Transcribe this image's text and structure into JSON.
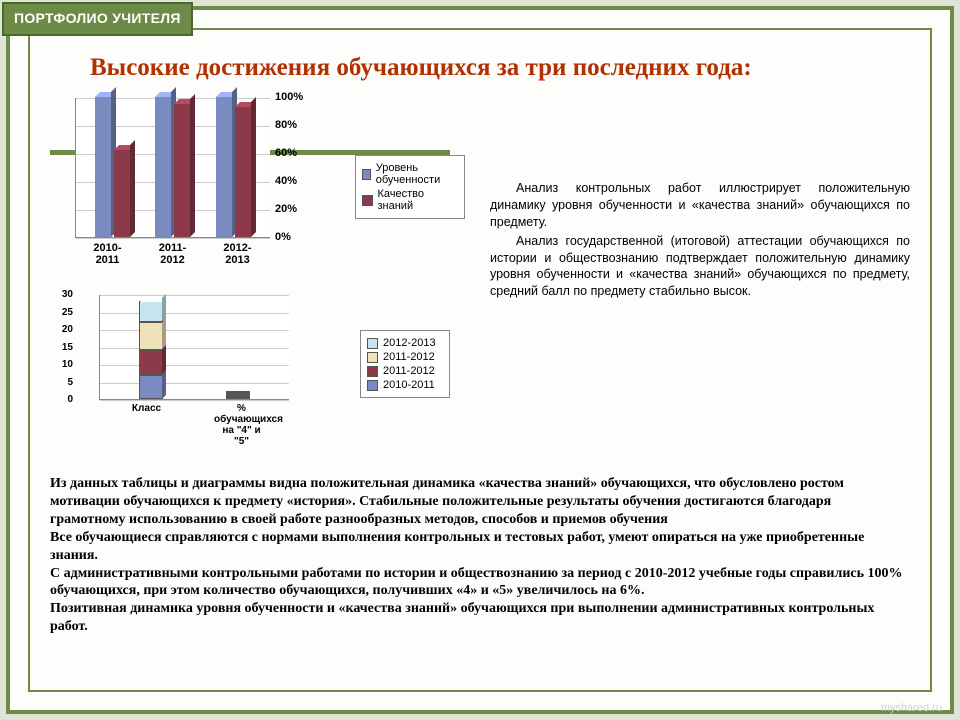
{
  "badge": {
    "label": "ПОРТФОЛИО УЧИТЕЛЯ"
  },
  "title": "Высокие достижения обучающихся за три последних года:",
  "chart1": {
    "type": "bar",
    "categories": [
      "2010-\n2011",
      "2011-\n2012",
      "2012-\n2013"
    ],
    "series": [
      {
        "name": "Уровень обученности",
        "color": "#7a8bbf",
        "values": [
          100,
          100,
          100
        ]
      },
      {
        "name": "Качество знаний",
        "color": "#8c3a4a",
        "values": [
          62,
          95,
          93
        ]
      }
    ],
    "ylim": [
      0,
      100
    ],
    "ytick_step": 20,
    "ytick_suffix": "%",
    "grid_color": "#cccccc",
    "label_fontsize": 11
  },
  "chart2": {
    "type": "stacked-bar",
    "categories": [
      "Класс",
      "% обучающихся на \"4\" и \"5\""
    ],
    "series": [
      {
        "name": "2012-2013",
        "color": "#c5e5f0",
        "values": [
          6,
          0.5
        ]
      },
      {
        "name": "2011-2012",
        "color": "#efe2b8",
        "values": [
          8,
          0.5
        ]
      },
      {
        "name": "2011-2012",
        "color": "#8c3a4a",
        "values": [
          7,
          0.5
        ]
      },
      {
        "name": "2010-2011",
        "color": "#7a8bbf",
        "values": [
          7,
          0.5
        ]
      }
    ],
    "ylim": [
      0,
      30
    ],
    "ytick_step": 5,
    "grid_color": "#cccccc",
    "label_fontsize": 10
  },
  "analysis": {
    "p1": "Анализ контрольных работ иллюстрирует положительную динамику уровня обученности и «качества знаний» обучающихся по предмету.",
    "p2": "Анализ государственной (итоговой) аттестации обучающихся по истории и обществознанию подтверждает положительную динамику уровня обученности и «качества знаний» обучающихся по предмету, средний балл по предмету стабильно высок."
  },
  "bottom": {
    "p1": "Из данных таблицы и диаграммы видна положительная динамика «качества знаний» обучающихся, что обусловлено ростом мотивации обучающихся к предмету «история». Стабильные положительные результаты обучения достигаются благодаря грамотному использованию в своей работе разнообразных методов, способов и приемов обучения",
    "p2": "Все обучающиеся справляются с нормами выполнения контрольных и тестовых работ, умеют опираться на уже приобретенные знания.",
    "p3": " С административными контрольными работами по истории и обществознанию за период с 2010-2012 учебные годы справились 100% обучающихся, при этом количество обучающихся, получивших «4» и «5» увеличилось на 6%.",
    "p4": "Позитивная динамика уровня обученности и «качества знаний» обучающихся при выполнении административных контрольных работ."
  },
  "watermark": "myshared.ru",
  "colors": {
    "frame": "#6d8a47",
    "background": "#dfe4d6",
    "title": "#b33000"
  }
}
